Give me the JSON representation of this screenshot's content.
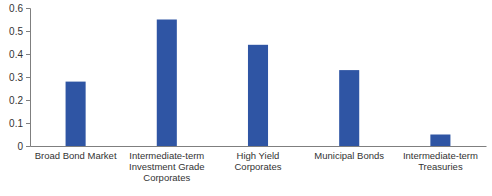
{
  "chart_data": {
    "type": "bar",
    "categories": [
      "Broad Bond Market",
      "Intermediate-term Investment Grade Corporates",
      "High Yield Corporates",
      "Municipal Bonds",
      "Intermediate-term Treasuries"
    ],
    "values": [
      0.28,
      0.55,
      0.44,
      0.33,
      0.05
    ],
    "color": "#2f55a4",
    "ylim": [
      0,
      0.6
    ],
    "yticks": [
      0,
      0.1,
      0.2,
      0.3,
      0.4,
      0.5,
      0.6
    ],
    "grid": false
  }
}
